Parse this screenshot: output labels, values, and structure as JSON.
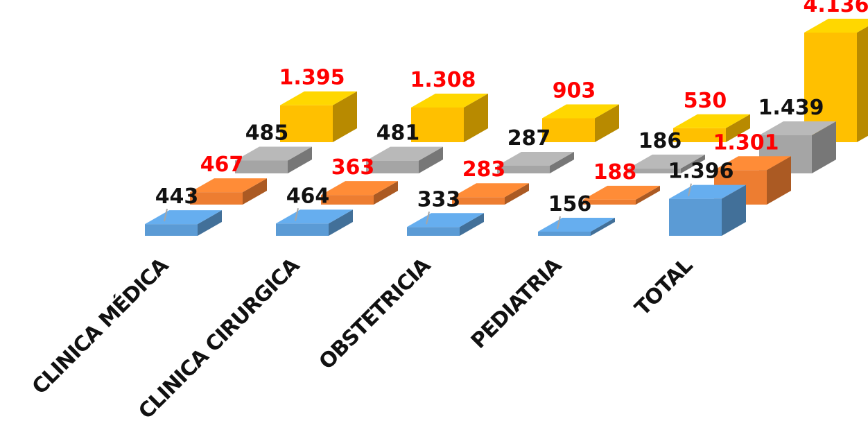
{
  "chart_data": {
    "type": "bar",
    "subtype": "3d-column",
    "title": "",
    "xlabel": "",
    "ylabel": "",
    "grid": false,
    "legend": "none",
    "categories": [
      "CLINICA MÉDICA",
      "CLINICA CIRURGICA",
      "OBSTETRICIA",
      "PEDIATRIA",
      "TOTAL"
    ],
    "series": [
      {
        "color": "#5B9BD5",
        "label_color": "#111111",
        "values": [
          443,
          464,
          333,
          156,
          1396
        ],
        "labels": [
          "443",
          "464",
          "333",
          "156",
          "1.396"
        ]
      },
      {
        "color": "#ED7D31",
        "label_color": "#FF0000",
        "values": [
          467,
          363,
          283,
          188,
          1301
        ],
        "labels": [
          "467",
          "363",
          "283",
          "188",
          "1.301"
        ]
      },
      {
        "color": "#A5A5A5",
        "label_color": "#111111",
        "values": [
          485,
          481,
          287,
          186,
          1439
        ],
        "labels": [
          "485",
          "481",
          "287",
          "186",
          "1.439"
        ]
      },
      {
        "color": "#FFC000",
        "label_color": "#FF0000",
        "values": [
          1395,
          1308,
          903,
          530,
          4136
        ],
        "labels": [
          "1.395",
          "1.308",
          "903",
          "530",
          "4.136"
        ]
      }
    ]
  }
}
